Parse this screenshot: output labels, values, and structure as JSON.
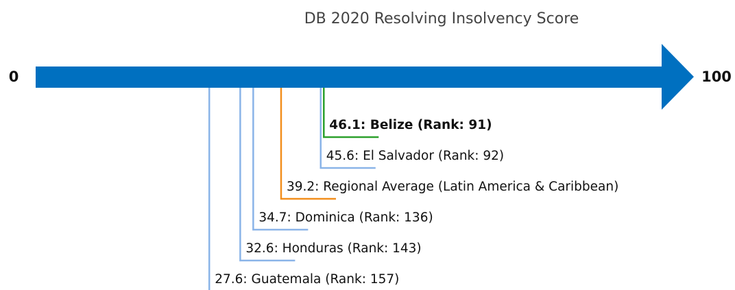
{
  "chart_data": {
    "type": "number_line",
    "title": "DB 2020 Resolving Insolvency Score",
    "xlim": [
      0,
      100
    ],
    "xticks": [
      0,
      100
    ],
    "values": [
      46.1,
      45.6,
      39.2,
      34.7,
      32.6,
      27.6
    ],
    "value_labels": [
      "46.1: Belize (Rank: 91)",
      "45.6: El Salvador (Rank: 92)",
      "39.2: Regional Average (Latin America & Caribbean)",
      "34.7: Dominica (Rank: 136)",
      "32.6: Honduras (Rank: 143)",
      "27.6: Guatemala (Rank: 157)"
    ],
    "colors": [
      "#2ca02c",
      "#8ab4e8",
      "#f28e1c",
      "#8ab4e8",
      "#8ab4e8",
      "#8ab4e8"
    ],
    "bold": [
      true,
      false,
      false,
      false,
      false,
      false
    ],
    "axis_color": "#0070c0"
  }
}
